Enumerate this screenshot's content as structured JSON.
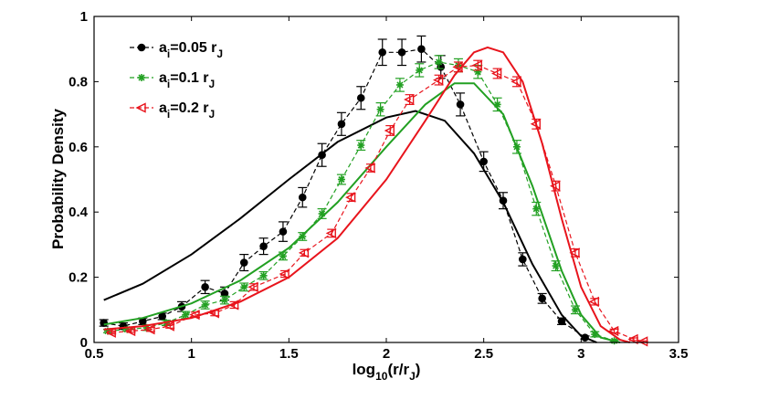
{
  "chart_data": {
    "type": "line",
    "xlabel": {
      "base": "log",
      "sub": "10",
      "open": "(r/r",
      "open_sub": "J",
      "close": ")"
    },
    "ylabel": "Probability Density",
    "xlim": [
      0.5,
      3.5
    ],
    "ylim": [
      0,
      1
    ],
    "xticks": [
      0.5,
      1,
      1.5,
      2,
      2.5,
      3,
      3.5
    ],
    "xtick_labels": [
      "0.5",
      "1",
      "1.5",
      "2",
      "2.5",
      "3",
      "3.5"
    ],
    "yticks": [
      0,
      0.2,
      0.4,
      0.6,
      0.8,
      1
    ],
    "ytick_labels": [
      "0",
      "0.2",
      "0.4",
      "0.6",
      "0.8",
      "1"
    ],
    "legend_position": "top-left",
    "series": [
      {
        "name": "a_i=0.05 r_J",
        "legend": {
          "a": "a",
          "i": "i",
          "mid": "=0.05 r",
          "j": "J"
        },
        "color": "#000000",
        "marker": "circle",
        "points": [
          {
            "x": 0.55,
            "y": 0.06,
            "err": 0.01
          },
          {
            "x": 0.65,
            "y": 0.05,
            "err": 0.01
          },
          {
            "x": 0.75,
            "y": 0.065,
            "err": 0.01
          },
          {
            "x": 0.85,
            "y": 0.08,
            "err": 0.01
          },
          {
            "x": 0.95,
            "y": 0.11,
            "err": 0.015
          },
          {
            "x": 1.07,
            "y": 0.17,
            "err": 0.02
          },
          {
            "x": 1.17,
            "y": 0.15,
            "err": 0.02
          },
          {
            "x": 1.27,
            "y": 0.245,
            "err": 0.025
          },
          {
            "x": 1.37,
            "y": 0.295,
            "err": 0.025
          },
          {
            "x": 1.47,
            "y": 0.34,
            "err": 0.03
          },
          {
            "x": 1.57,
            "y": 0.445,
            "err": 0.03
          },
          {
            "x": 1.67,
            "y": 0.575,
            "err": 0.035
          },
          {
            "x": 1.77,
            "y": 0.67,
            "err": 0.035
          },
          {
            "x": 1.87,
            "y": 0.75,
            "err": 0.035
          },
          {
            "x": 1.98,
            "y": 0.89,
            "err": 0.04
          },
          {
            "x": 2.08,
            "y": 0.89,
            "err": 0.04
          },
          {
            "x": 2.18,
            "y": 0.9,
            "err": 0.04
          },
          {
            "x": 2.28,
            "y": 0.845,
            "err": 0.035
          },
          {
            "x": 2.38,
            "y": 0.73,
            "err": 0.035
          },
          {
            "x": 2.5,
            "y": 0.555,
            "err": 0.03
          },
          {
            "x": 2.6,
            "y": 0.435,
            "err": 0.025
          },
          {
            "x": 2.7,
            "y": 0.255,
            "err": 0.02
          },
          {
            "x": 2.8,
            "y": 0.135,
            "err": 0.015
          },
          {
            "x": 2.9,
            "y": 0.065,
            "err": 0.01
          },
          {
            "x": 3.02,
            "y": 0.015,
            "err": 0.005
          }
        ],
        "fit": [
          {
            "x": 0.55,
            "y": 0.13
          },
          {
            "x": 0.75,
            "y": 0.18
          },
          {
            "x": 1.0,
            "y": 0.27
          },
          {
            "x": 1.25,
            "y": 0.38
          },
          {
            "x": 1.5,
            "y": 0.5
          },
          {
            "x": 1.75,
            "y": 0.615
          },
          {
            "x": 2.0,
            "y": 0.69
          },
          {
            "x": 2.15,
            "y": 0.71
          },
          {
            "x": 2.3,
            "y": 0.68
          },
          {
            "x": 2.45,
            "y": 0.58
          },
          {
            "x": 2.6,
            "y": 0.43
          },
          {
            "x": 2.75,
            "y": 0.24
          },
          {
            "x": 2.9,
            "y": 0.085
          },
          {
            "x": 3.0,
            "y": 0.02
          },
          {
            "x": 3.08,
            "y": 0.0
          }
        ]
      },
      {
        "name": "a_i=0.1 r_J",
        "legend": {
          "a": "a",
          "i": "i",
          "mid": "=0.1 r",
          "j": "J"
        },
        "color": "#22a022",
        "marker": "star",
        "points": [
          {
            "x": 0.57,
            "y": 0.035,
            "err": 0.005
          },
          {
            "x": 0.67,
            "y": 0.04,
            "err": 0.005
          },
          {
            "x": 0.77,
            "y": 0.045,
            "err": 0.008
          },
          {
            "x": 0.87,
            "y": 0.06,
            "err": 0.008
          },
          {
            "x": 0.97,
            "y": 0.085,
            "err": 0.01
          },
          {
            "x": 1.07,
            "y": 0.115,
            "err": 0.012
          },
          {
            "x": 1.17,
            "y": 0.13,
            "err": 0.012
          },
          {
            "x": 1.27,
            "y": 0.17,
            "err": 0.012
          },
          {
            "x": 1.37,
            "y": 0.205,
            "err": 0.012
          },
          {
            "x": 1.47,
            "y": 0.265,
            "err": 0.012
          },
          {
            "x": 1.57,
            "y": 0.325,
            "err": 0.012
          },
          {
            "x": 1.67,
            "y": 0.395,
            "err": 0.015
          },
          {
            "x": 1.77,
            "y": 0.5,
            "err": 0.015
          },
          {
            "x": 1.87,
            "y": 0.605,
            "err": 0.015
          },
          {
            "x": 1.97,
            "y": 0.715,
            "err": 0.02
          },
          {
            "x": 2.07,
            "y": 0.79,
            "err": 0.02
          },
          {
            "x": 2.17,
            "y": 0.835,
            "err": 0.02
          },
          {
            "x": 2.27,
            "y": 0.86,
            "err": 0.02
          },
          {
            "x": 2.37,
            "y": 0.85,
            "err": 0.02
          },
          {
            "x": 2.47,
            "y": 0.83,
            "err": 0.02
          },
          {
            "x": 2.57,
            "y": 0.73,
            "err": 0.02
          },
          {
            "x": 2.67,
            "y": 0.6,
            "err": 0.02
          },
          {
            "x": 2.77,
            "y": 0.41,
            "err": 0.02
          },
          {
            "x": 2.87,
            "y": 0.235,
            "err": 0.015
          },
          {
            "x": 2.97,
            "y": 0.1,
            "err": 0.012
          },
          {
            "x": 3.07,
            "y": 0.025,
            "err": 0.008
          },
          {
            "x": 3.17,
            "y": 0.005,
            "err": 0.003
          }
        ],
        "fit": [
          {
            "x": 0.55,
            "y": 0.055
          },
          {
            "x": 0.75,
            "y": 0.075
          },
          {
            "x": 1.0,
            "y": 0.12
          },
          {
            "x": 1.25,
            "y": 0.19
          },
          {
            "x": 1.5,
            "y": 0.29
          },
          {
            "x": 1.75,
            "y": 0.43
          },
          {
            "x": 2.0,
            "y": 0.6
          },
          {
            "x": 2.2,
            "y": 0.73
          },
          {
            "x": 2.35,
            "y": 0.795
          },
          {
            "x": 2.45,
            "y": 0.795
          },
          {
            "x": 2.6,
            "y": 0.7
          },
          {
            "x": 2.75,
            "y": 0.48
          },
          {
            "x": 2.9,
            "y": 0.22
          },
          {
            "x": 3.0,
            "y": 0.085
          },
          {
            "x": 3.1,
            "y": 0.015
          },
          {
            "x": 3.2,
            "y": 0.0
          }
        ]
      },
      {
        "name": "a_i=0.2 r_J",
        "legend": {
          "a": "a",
          "i": "i",
          "mid": "=0.2 r",
          "j": "J"
        },
        "color": "#e8141c",
        "marker": "triangle-left",
        "points": [
          {
            "x": 0.59,
            "y": 0.03,
            "err": 0.004
          },
          {
            "x": 0.69,
            "y": 0.035,
            "err": 0.004
          },
          {
            "x": 0.79,
            "y": 0.04,
            "err": 0.006
          },
          {
            "x": 0.89,
            "y": 0.05,
            "err": 0.006
          },
          {
            "x": 1.02,
            "y": 0.085,
            "err": 0.008
          },
          {
            "x": 1.12,
            "y": 0.09,
            "err": 0.008
          },
          {
            "x": 1.22,
            "y": 0.115,
            "err": 0.01
          },
          {
            "x": 1.32,
            "y": 0.17,
            "err": 0.01
          },
          {
            "x": 1.48,
            "y": 0.21,
            "err": 0.01
          },
          {
            "x": 1.58,
            "y": 0.275,
            "err": 0.01
          },
          {
            "x": 1.72,
            "y": 0.335,
            "err": 0.012
          },
          {
            "x": 1.82,
            "y": 0.445,
            "err": 0.012
          },
          {
            "x": 1.92,
            "y": 0.535,
            "err": 0.012
          },
          {
            "x": 2.02,
            "y": 0.65,
            "err": 0.015
          },
          {
            "x": 2.12,
            "y": 0.745,
            "err": 0.015
          },
          {
            "x": 2.27,
            "y": 0.805,
            "err": 0.015
          },
          {
            "x": 2.37,
            "y": 0.845,
            "err": 0.015
          },
          {
            "x": 2.47,
            "y": 0.85,
            "err": 0.015
          },
          {
            "x": 2.57,
            "y": 0.825,
            "err": 0.015
          },
          {
            "x": 2.67,
            "y": 0.8,
            "err": 0.015
          },
          {
            "x": 2.77,
            "y": 0.67,
            "err": 0.015
          },
          {
            "x": 2.87,
            "y": 0.48,
            "err": 0.015
          },
          {
            "x": 2.97,
            "y": 0.275,
            "err": 0.012
          },
          {
            "x": 3.07,
            "y": 0.125,
            "err": 0.01
          },
          {
            "x": 3.17,
            "y": 0.035,
            "err": 0.006
          },
          {
            "x": 3.27,
            "y": 0.01,
            "err": 0.004
          },
          {
            "x": 3.32,
            "y": 0.003,
            "err": 0.002
          }
        ],
        "fit": [
          {
            "x": 0.55,
            "y": 0.04
          },
          {
            "x": 0.75,
            "y": 0.05
          },
          {
            "x": 1.0,
            "y": 0.075
          },
          {
            "x": 1.25,
            "y": 0.125
          },
          {
            "x": 1.5,
            "y": 0.2
          },
          {
            "x": 1.75,
            "y": 0.32
          },
          {
            "x": 2.0,
            "y": 0.5
          },
          {
            "x": 2.2,
            "y": 0.68
          },
          {
            "x": 2.35,
            "y": 0.82
          },
          {
            "x": 2.45,
            "y": 0.89
          },
          {
            "x": 2.52,
            "y": 0.905
          },
          {
            "x": 2.6,
            "y": 0.89
          },
          {
            "x": 2.7,
            "y": 0.8
          },
          {
            "x": 2.8,
            "y": 0.61
          },
          {
            "x": 2.9,
            "y": 0.38
          },
          {
            "x": 3.0,
            "y": 0.17
          },
          {
            "x": 3.1,
            "y": 0.05
          },
          {
            "x": 3.2,
            "y": 0.008
          },
          {
            "x": 3.25,
            "y": 0.0
          }
        ]
      }
    ]
  }
}
